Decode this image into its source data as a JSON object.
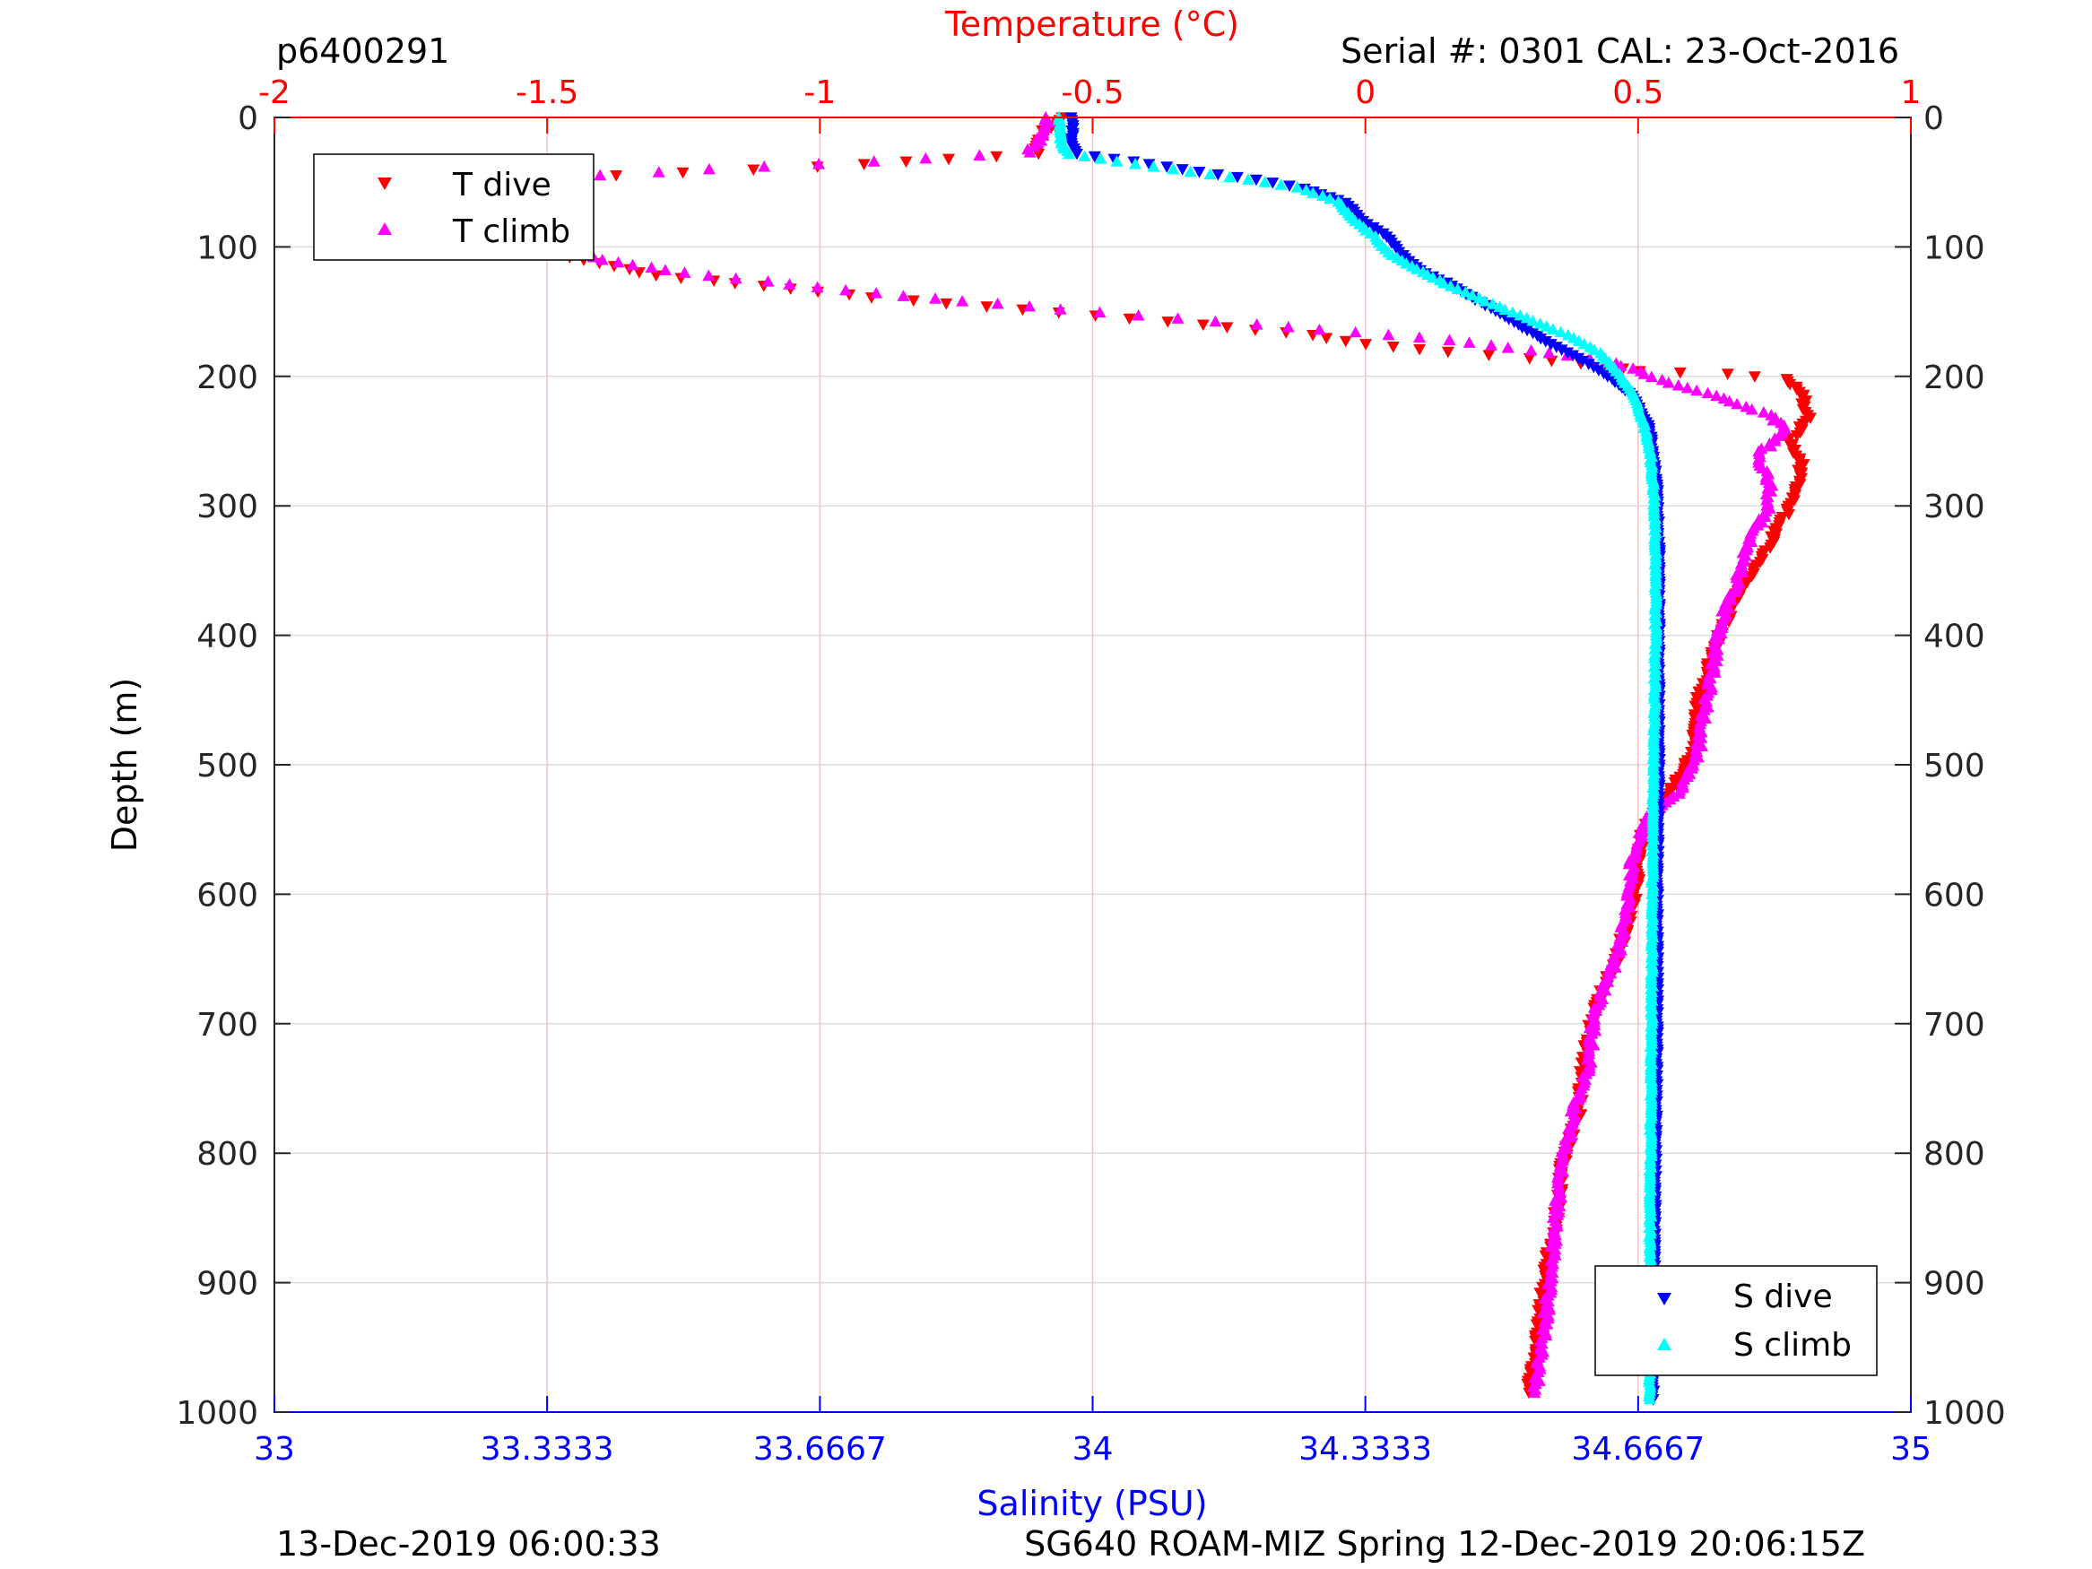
{
  "header": {
    "left": "p6400291",
    "right": "Serial #: 0301  CAL: 23-Oct-2016"
  },
  "footer": {
    "left": "13-Dec-2019 06:00:33",
    "right": "SG640 ROAM-MIZ Spring 12-Dec-2019 20:06:15Z"
  },
  "chart_data": {
    "type": "scatter",
    "y_axis": {
      "label": "Depth (m)",
      "range": [
        0,
        1000
      ],
      "reversed": true,
      "ticks": [
        "0",
        "100",
        "200",
        "300",
        "400",
        "500",
        "600",
        "700",
        "800",
        "900",
        "1000"
      ]
    },
    "x_top_axis": {
      "label": "Temperature (°C)",
      "range": [
        -2,
        1
      ],
      "color": "#ff0000",
      "ticks": [
        "-2",
        "-1.5",
        "-1",
        "-0.5",
        "0",
        "0.5",
        "1"
      ]
    },
    "x_bottom_axis": {
      "label": "Salinity (PSU)",
      "range": [
        33,
        35
      ],
      "color": "#0000ff",
      "ticks": [
        "33",
        "33.3333",
        "33.6667",
        "34",
        "34.3333",
        "34.6667",
        "35"
      ]
    },
    "grid": true,
    "legends": [
      {
        "placement": "top-left",
        "entries": [
          "T dive",
          "T climb"
        ]
      },
      {
        "placement": "bottom-right",
        "entries": [
          "S dive",
          "S climb"
        ]
      }
    ],
    "series": [
      {
        "name": "T dive",
        "axis": "temperature",
        "marker": "triangle-down",
        "color": "#ff0000",
        "points": [
          [
            -0.55,
            0
          ],
          [
            -0.59,
            10
          ],
          [
            -0.6,
            22
          ],
          [
            -0.6,
            28
          ],
          [
            -1.0,
            38
          ],
          [
            -1.5,
            47
          ],
          [
            -1.69,
            55
          ],
          [
            -1.71,
            65
          ],
          [
            -1.7,
            80
          ],
          [
            -1.58,
            92
          ],
          [
            -1.5,
            104
          ],
          [
            -1.43,
            110
          ],
          [
            -1.3,
            122
          ],
          [
            -1.1,
            130
          ],
          [
            -0.9,
            139
          ],
          [
            -0.7,
            146
          ],
          [
            -0.5,
            153
          ],
          [
            -0.3,
            160
          ],
          [
            -0.1,
            168
          ],
          [
            0.0,
            175
          ],
          [
            0.15,
            181
          ],
          [
            0.3,
            186
          ],
          [
            0.44,
            192
          ],
          [
            0.5,
            196
          ],
          [
            0.66,
            198
          ],
          [
            0.77,
            202
          ],
          [
            0.8,
            212
          ],
          [
            0.81,
            232
          ],
          [
            0.78,
            250
          ],
          [
            0.8,
            270
          ],
          [
            0.78,
            300
          ],
          [
            0.74,
            330
          ],
          [
            0.68,
            370
          ],
          [
            0.65,
            400
          ],
          [
            0.61,
            450
          ],
          [
            0.6,
            490
          ],
          [
            0.56,
            520
          ],
          [
            0.51,
            550
          ],
          [
            0.5,
            580
          ],
          [
            0.49,
            610
          ],
          [
            0.46,
            650
          ],
          [
            0.42,
            690
          ],
          [
            0.4,
            730
          ],
          [
            0.39,
            770
          ],
          [
            0.36,
            810
          ],
          [
            0.35,
            850
          ],
          [
            0.33,
            890
          ],
          [
            0.32,
            930
          ],
          [
            0.31,
            960
          ],
          [
            0.3,
            985
          ]
        ]
      },
      {
        "name": "T climb",
        "axis": "temperature",
        "marker": "triangle-up",
        "color": "#ff00ff",
        "points": [
          [
            -0.58,
            0
          ],
          [
            -0.59,
            10
          ],
          [
            -0.6,
            20
          ],
          [
            -0.62,
            27
          ],
          [
            -0.9,
            34
          ],
          [
            -1.2,
            40
          ],
          [
            -1.5,
            47
          ],
          [
            -1.68,
            55
          ],
          [
            -1.72,
            64
          ],
          [
            -1.74,
            76
          ],
          [
            -1.6,
            90
          ],
          [
            -1.47,
            100
          ],
          [
            -1.4,
            110
          ],
          [
            -1.25,
            120
          ],
          [
            -1.05,
            129
          ],
          [
            -0.85,
            138
          ],
          [
            -0.62,
            146
          ],
          [
            -0.42,
            153
          ],
          [
            -0.2,
            160
          ],
          [
            -0.02,
            166
          ],
          [
            0.15,
            172
          ],
          [
            0.3,
            180
          ],
          [
            0.44,
            188
          ],
          [
            0.5,
            196
          ],
          [
            0.56,
            205
          ],
          [
            0.64,
            215
          ],
          [
            0.74,
            230
          ],
          [
            0.77,
            240
          ],
          [
            0.75,
            250
          ],
          [
            0.72,
            260
          ],
          [
            0.74,
            280
          ],
          [
            0.74,
            300
          ],
          [
            0.7,
            330
          ],
          [
            0.68,
            360
          ],
          [
            0.65,
            390
          ],
          [
            0.64,
            420
          ],
          [
            0.62,
            460
          ],
          [
            0.61,
            490
          ],
          [
            0.58,
            520
          ],
          [
            0.52,
            540
          ],
          [
            0.49,
            570
          ],
          [
            0.48,
            610
          ],
          [
            0.46,
            650
          ],
          [
            0.42,
            690
          ],
          [
            0.41,
            730
          ],
          [
            0.38,
            770
          ],
          [
            0.36,
            810
          ],
          [
            0.35,
            850
          ],
          [
            0.34,
            890
          ],
          [
            0.33,
            930
          ],
          [
            0.32,
            960
          ],
          [
            0.31,
            985
          ]
        ]
      },
      {
        "name": "S dive",
        "axis": "salinity",
        "marker": "triangle-down",
        "color": "#0000ff",
        "points": [
          [
            33.975,
            0
          ],
          [
            33.975,
            10
          ],
          [
            33.975,
            20
          ],
          [
            33.98,
            28
          ],
          [
            34.05,
            34
          ],
          [
            34.13,
            42
          ],
          [
            34.2,
            48
          ],
          [
            34.26,
            55
          ],
          [
            34.31,
            66
          ],
          [
            34.33,
            80
          ],
          [
            34.36,
            92
          ],
          [
            34.375,
            104
          ],
          [
            34.4,
            118
          ],
          [
            34.44,
            130
          ],
          [
            34.48,
            145
          ],
          [
            34.52,
            160
          ],
          [
            34.56,
            175
          ],
          [
            34.6,
            188
          ],
          [
            34.63,
            200
          ],
          [
            34.66,
            215
          ],
          [
            34.68,
            240
          ],
          [
            34.685,
            260
          ],
          [
            34.69,
            290
          ],
          [
            34.692,
            330
          ],
          [
            34.692,
            400
          ],
          [
            34.692,
            500
          ],
          [
            34.69,
            600
          ],
          [
            34.69,
            700
          ],
          [
            34.688,
            800
          ],
          [
            34.686,
            900
          ],
          [
            34.685,
            990
          ]
        ]
      },
      {
        "name": "S climb",
        "axis": "salinity",
        "marker": "triangle-up",
        "color": "#00ffff",
        "points": [
          [
            33.96,
            0
          ],
          [
            33.96,
            10
          ],
          [
            33.962,
            20
          ],
          [
            33.97,
            28
          ],
          [
            34.03,
            34
          ],
          [
            34.12,
            42
          ],
          [
            34.19,
            48
          ],
          [
            34.25,
            54
          ],
          [
            34.3,
            65
          ],
          [
            34.32,
            80
          ],
          [
            34.345,
            92
          ],
          [
            34.36,
            104
          ],
          [
            34.39,
            115
          ],
          [
            34.43,
            128
          ],
          [
            34.48,
            142
          ],
          [
            34.53,
            155
          ],
          [
            34.58,
            168
          ],
          [
            34.62,
            182
          ],
          [
            34.64,
            196
          ],
          [
            34.66,
            212
          ],
          [
            34.675,
            240
          ],
          [
            34.682,
            260
          ],
          [
            34.686,
            290
          ],
          [
            34.688,
            330
          ],
          [
            34.688,
            400
          ],
          [
            34.686,
            500
          ],
          [
            34.684,
            600
          ],
          [
            34.683,
            700
          ],
          [
            34.682,
            800
          ],
          [
            34.681,
            900
          ],
          [
            34.681,
            990
          ]
        ]
      }
    ]
  }
}
